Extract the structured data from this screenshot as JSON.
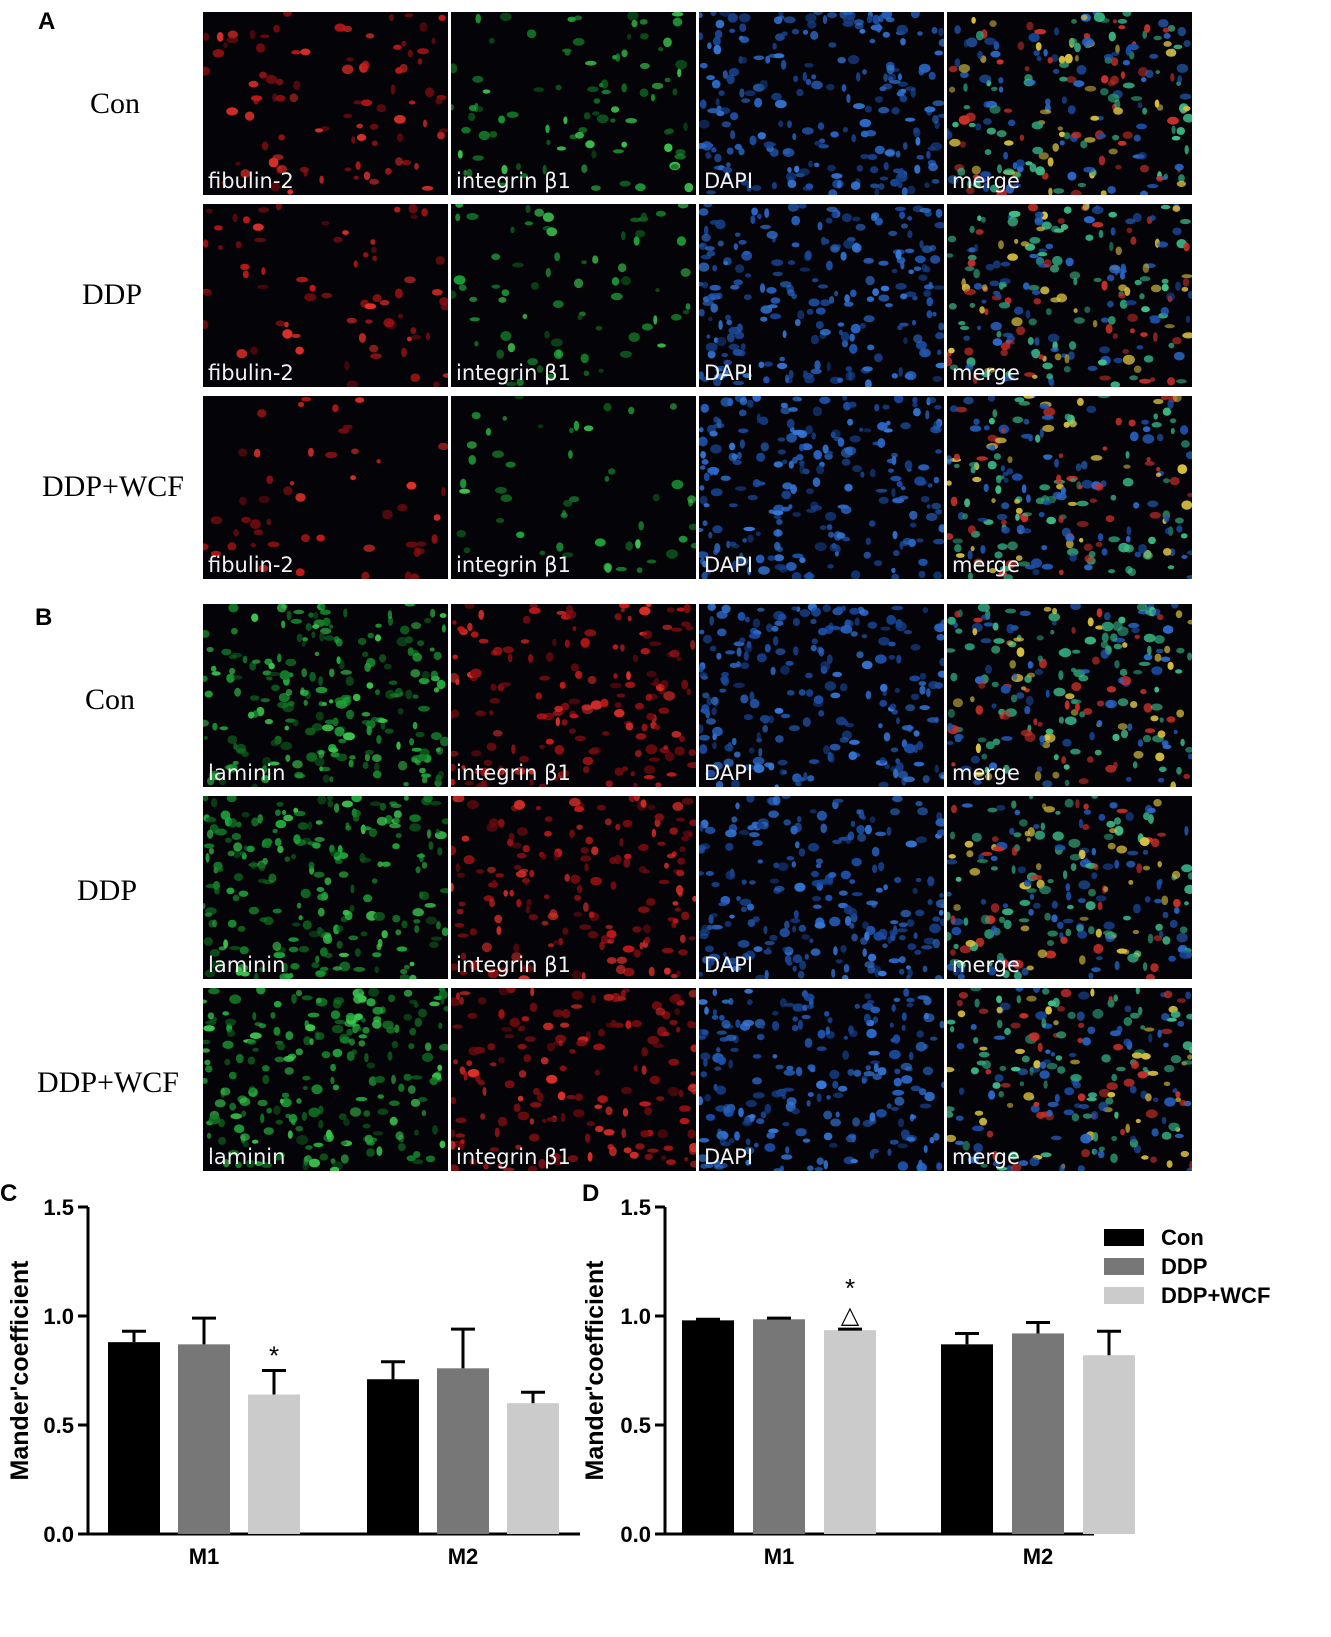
{
  "panels": {
    "a": "A",
    "b": "B",
    "c": "C",
    "d": "D"
  },
  "micrographs": {
    "A": {
      "rows": [
        "Con",
        "DDP",
        "DDP+WCF"
      ],
      "channels": [
        {
          "label": "fibulin-2",
          "color": "red"
        },
        {
          "label": "integrin β1",
          "color": "green"
        },
        {
          "label": "DAPI",
          "color": "blue"
        },
        {
          "label": "merge",
          "color": "merge"
        }
      ]
    },
    "B": {
      "rows": [
        "Con",
        "DDP",
        "DDP+WCF"
      ],
      "channels": [
        {
          "label": "laminin",
          "color": "green"
        },
        {
          "label": "integrin β1",
          "color": "red"
        },
        {
          "label": "DAPI",
          "color": "blue"
        },
        {
          "label": "merge",
          "color": "merge"
        }
      ]
    }
  },
  "colors": {
    "Con": "#000000",
    "DDP": "#777777",
    "DDP+WCF": "#cbcbcb"
  },
  "chart_data": [
    {
      "panel": "C",
      "type": "bar",
      "categories": [
        "M1",
        "M2"
      ],
      "ylabel": "Mander'coefficient",
      "ylim": [
        0,
        1.5
      ],
      "yticks": [
        "0.0",
        "0.5",
        "1.0",
        "1.5"
      ],
      "series": [
        {
          "name": "Con",
          "values": [
            0.88,
            0.71
          ],
          "errors": [
            0.05,
            0.08
          ]
        },
        {
          "name": "DDP",
          "values": [
            0.87,
            0.76
          ],
          "errors": [
            0.12,
            0.18
          ]
        },
        {
          "name": "DDP+WCF",
          "values": [
            0.64,
            0.6
          ],
          "errors": [
            0.11,
            0.05
          ]
        }
      ],
      "annotations": [
        {
          "series": "DDP+WCF",
          "category": "M1",
          "text": "*"
        }
      ],
      "legend": false
    },
    {
      "panel": "D",
      "type": "bar",
      "categories": [
        "M1",
        "M2"
      ],
      "ylabel": "Mander'coefficient",
      "ylim": [
        0,
        1.5
      ],
      "yticks": [
        "0.0",
        "0.5",
        "1.0",
        "1.5"
      ],
      "series": [
        {
          "name": "Con",
          "values": [
            0.98,
            0.87
          ],
          "errors": [
            0.005,
            0.05
          ]
        },
        {
          "name": "DDP",
          "values": [
            0.985,
            0.92
          ],
          "errors": [
            0.005,
            0.05
          ]
        },
        {
          "name": "DDP+WCF",
          "values": [
            0.935,
            0.82
          ],
          "errors": [
            0.005,
            0.11
          ]
        }
      ],
      "annotations": [
        {
          "series": "DDP+WCF",
          "category": "M1",
          "text": "*"
        },
        {
          "series": "DDP+WCF",
          "category": "M1",
          "text": "△"
        }
      ],
      "legend": true,
      "legend_position": "top-right"
    }
  ]
}
